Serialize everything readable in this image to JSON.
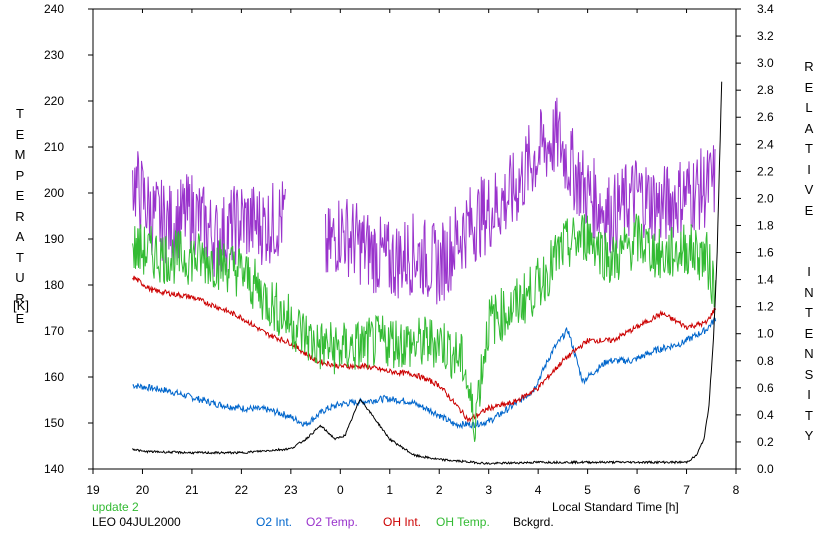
{
  "chart_data": {
    "type": "line",
    "title": "",
    "ylabel_left": "TEMPERATURE",
    "ylabel_left_unit": "[K]",
    "ylabel_right": "RELATIVE  INTENSITY",
    "xlabel": "Local Standard Time [h]",
    "x_ticks": [
      "19",
      "20",
      "21",
      "22",
      "23",
      "0",
      "1",
      "2",
      "3",
      "4",
      "5",
      "6",
      "7",
      "8"
    ],
    "y_left_ticks": [
      "140",
      "150",
      "160",
      "170",
      "180",
      "190",
      "200",
      "210",
      "220",
      "230",
      "240"
    ],
    "y_right_ticks": [
      "0.0",
      "0.2",
      "0.4",
      "0.6",
      "0.8",
      "1.0",
      "1.2",
      "1.4",
      "1.6",
      "1.8",
      "2.0",
      "2.2",
      "2.4",
      "2.6",
      "2.8",
      "3.0",
      "3.2",
      "3.4"
    ],
    "xlim": [
      19,
      32
    ],
    "ylim_left": [
      140,
      240
    ],
    "ylim_right": [
      0,
      3.4
    ],
    "grid": false,
    "legend": "bottom",
    "series": [
      {
        "name": "O2 Int.",
        "axis": "right",
        "color": "#0066cc",
        "noise": 0.025,
        "x": [
          19.8,
          20.5,
          21.0,
          21.5,
          22.0,
          22.5,
          22.9,
          23.3,
          23.7,
          24.0,
          24.5,
          24.9,
          25.4,
          25.9,
          26.3,
          26.7,
          27.0,
          27.5,
          27.9,
          28.3,
          28.6,
          28.9,
          29.4,
          29.9,
          30.4,
          30.9,
          31.4,
          31.6
        ],
        "y": [
          0.62,
          0.58,
          0.53,
          0.48,
          0.45,
          0.44,
          0.4,
          0.33,
          0.44,
          0.48,
          0.5,
          0.52,
          0.5,
          0.42,
          0.33,
          0.33,
          0.35,
          0.47,
          0.58,
          0.88,
          1.03,
          0.65,
          0.8,
          0.8,
          0.88,
          0.93,
          1.03,
          1.12
        ]
      },
      {
        "name": "O2 Temp.",
        "axis": "left",
        "color": "#9933cc",
        "noise": 9,
        "x": [
          19.8,
          20.2,
          20.6,
          21.0,
          21.5,
          22.0,
          22.5,
          22.9,
          23.7,
          24.0,
          24.5,
          25.0,
          25.5,
          26.0,
          26.5,
          27.0,
          27.5,
          27.8,
          28.1,
          28.4,
          28.6,
          29.0,
          29.5,
          30.0,
          30.5,
          31.0,
          31.4,
          31.6
        ],
        "y": [
          203,
          195,
          193,
          196,
          190,
          194,
          193,
          195,
          187,
          192,
          188,
          185,
          187,
          184,
          192,
          196,
          200,
          206,
          210,
          212,
          207,
          200,
          195,
          200,
          197,
          200,
          201,
          203
        ],
        "gaps": [
          [
            22.9,
            23.7
          ]
        ]
      },
      {
        "name": "OH Int.",
        "axis": "right",
        "color": "#cc0000",
        "noise": 0.02,
        "x": [
          19.8,
          20.2,
          21.0,
          21.5,
          22.0,
          22.5,
          23.0,
          23.5,
          24.0,
          24.5,
          25.0,
          25.5,
          26.0,
          26.6,
          27.0,
          27.5,
          28.0,
          28.5,
          29.0,
          29.5,
          30.0,
          30.5,
          31.0,
          31.4,
          31.6
        ],
        "y": [
          1.42,
          1.32,
          1.27,
          1.2,
          1.12,
          1.0,
          0.93,
          0.8,
          0.76,
          0.76,
          0.72,
          0.7,
          0.62,
          0.36,
          0.45,
          0.49,
          0.6,
          0.8,
          0.95,
          0.95,
          1.05,
          1.15,
          1.05,
          1.08,
          1.2
        ]
      },
      {
        "name": "OH Temp.",
        "axis": "left",
        "color": "#33bb33",
        "noise": 6,
        "x": [
          19.8,
          20.5,
          21.0,
          21.5,
          22.0,
          22.5,
          23.0,
          23.5,
          24.0,
          24.5,
          25.0,
          25.5,
          26.0,
          26.5,
          26.7,
          27.0,
          27.5,
          28.0,
          28.5,
          29.0,
          29.5,
          30.0,
          30.5,
          31.0,
          31.4,
          31.6
        ],
        "y": [
          188,
          186,
          186,
          185,
          183,
          177,
          172,
          167,
          166,
          167,
          168,
          167,
          168,
          163,
          150,
          172,
          175,
          180,
          188,
          191,
          185,
          190,
          186,
          188,
          186,
          178
        ]
      },
      {
        "name": "Bckgrd.",
        "axis": "right",
        "color": "#000000",
        "noise": 0.008,
        "x": [
          19.8,
          20.0,
          21.0,
          22.0,
          23.0,
          23.3,
          23.6,
          23.9,
          24.1,
          24.4,
          24.6,
          25.0,
          25.5,
          26.0,
          27.0,
          28.0,
          29.0,
          30.0,
          31.0,
          31.2,
          31.35,
          31.45,
          31.55,
          31.62,
          31.72
        ],
        "y": [
          0.15,
          0.13,
          0.12,
          0.12,
          0.15,
          0.22,
          0.32,
          0.22,
          0.25,
          0.52,
          0.42,
          0.22,
          0.1,
          0.07,
          0.04,
          0.05,
          0.05,
          0.05,
          0.05,
          0.1,
          0.22,
          0.45,
          1.0,
          1.6,
          3.0
        ]
      }
    ]
  },
  "footer": {
    "update_label": "update 2",
    "station_label": "LEO 04JUL2000",
    "update_color": "#33bb33"
  }
}
